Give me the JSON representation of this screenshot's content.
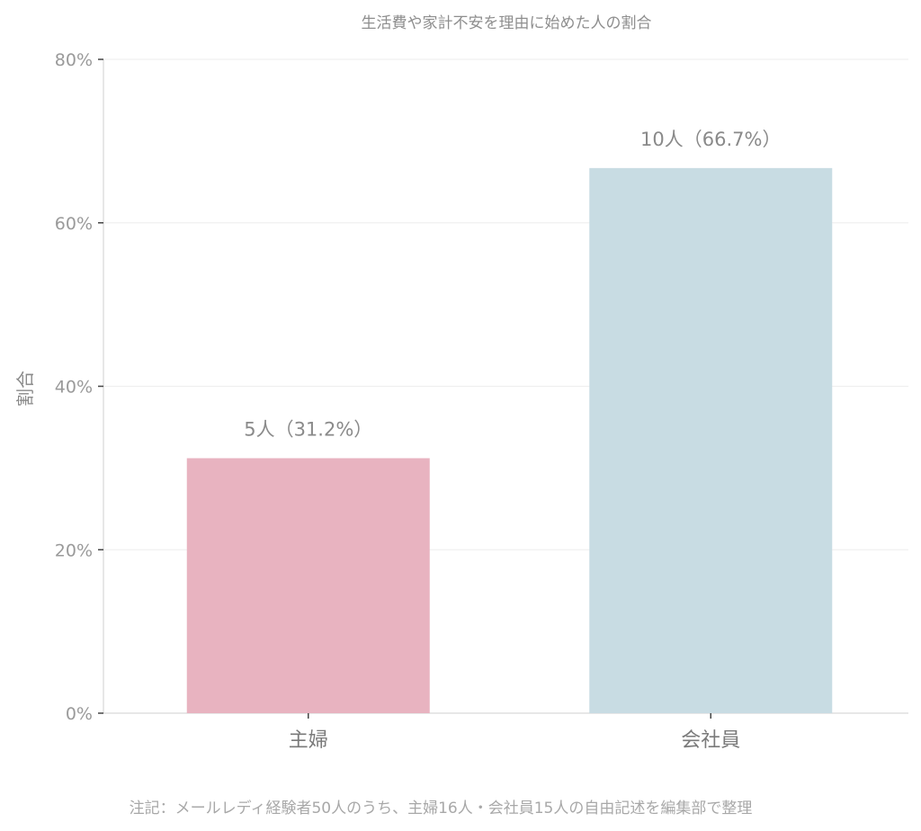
{
  "chart_data": {
    "type": "bar",
    "title": "生活費や家計不安を理由に始めた人の割合",
    "ylabel": "割合",
    "xlabel": "",
    "categories": [
      "主婦",
      "会社員"
    ],
    "values": [
      31.2,
      66.7
    ],
    "value_labels": [
      "5人（31.2%）",
      "10人（66.7%）"
    ],
    "colors": [
      "#e8b3c0",
      "#c8dce3"
    ],
    "ylim": [
      0,
      80
    ],
    "yticks": [
      0,
      20,
      40,
      60,
      80
    ],
    "ytick_labels": [
      "0%",
      "20%",
      "40%",
      "60%",
      "80%"
    ],
    "grid": true,
    "footnote": "注記：メールレディ経験者50人のうち、主婦16人・会社員15人の自由記述を編集部で整理"
  }
}
